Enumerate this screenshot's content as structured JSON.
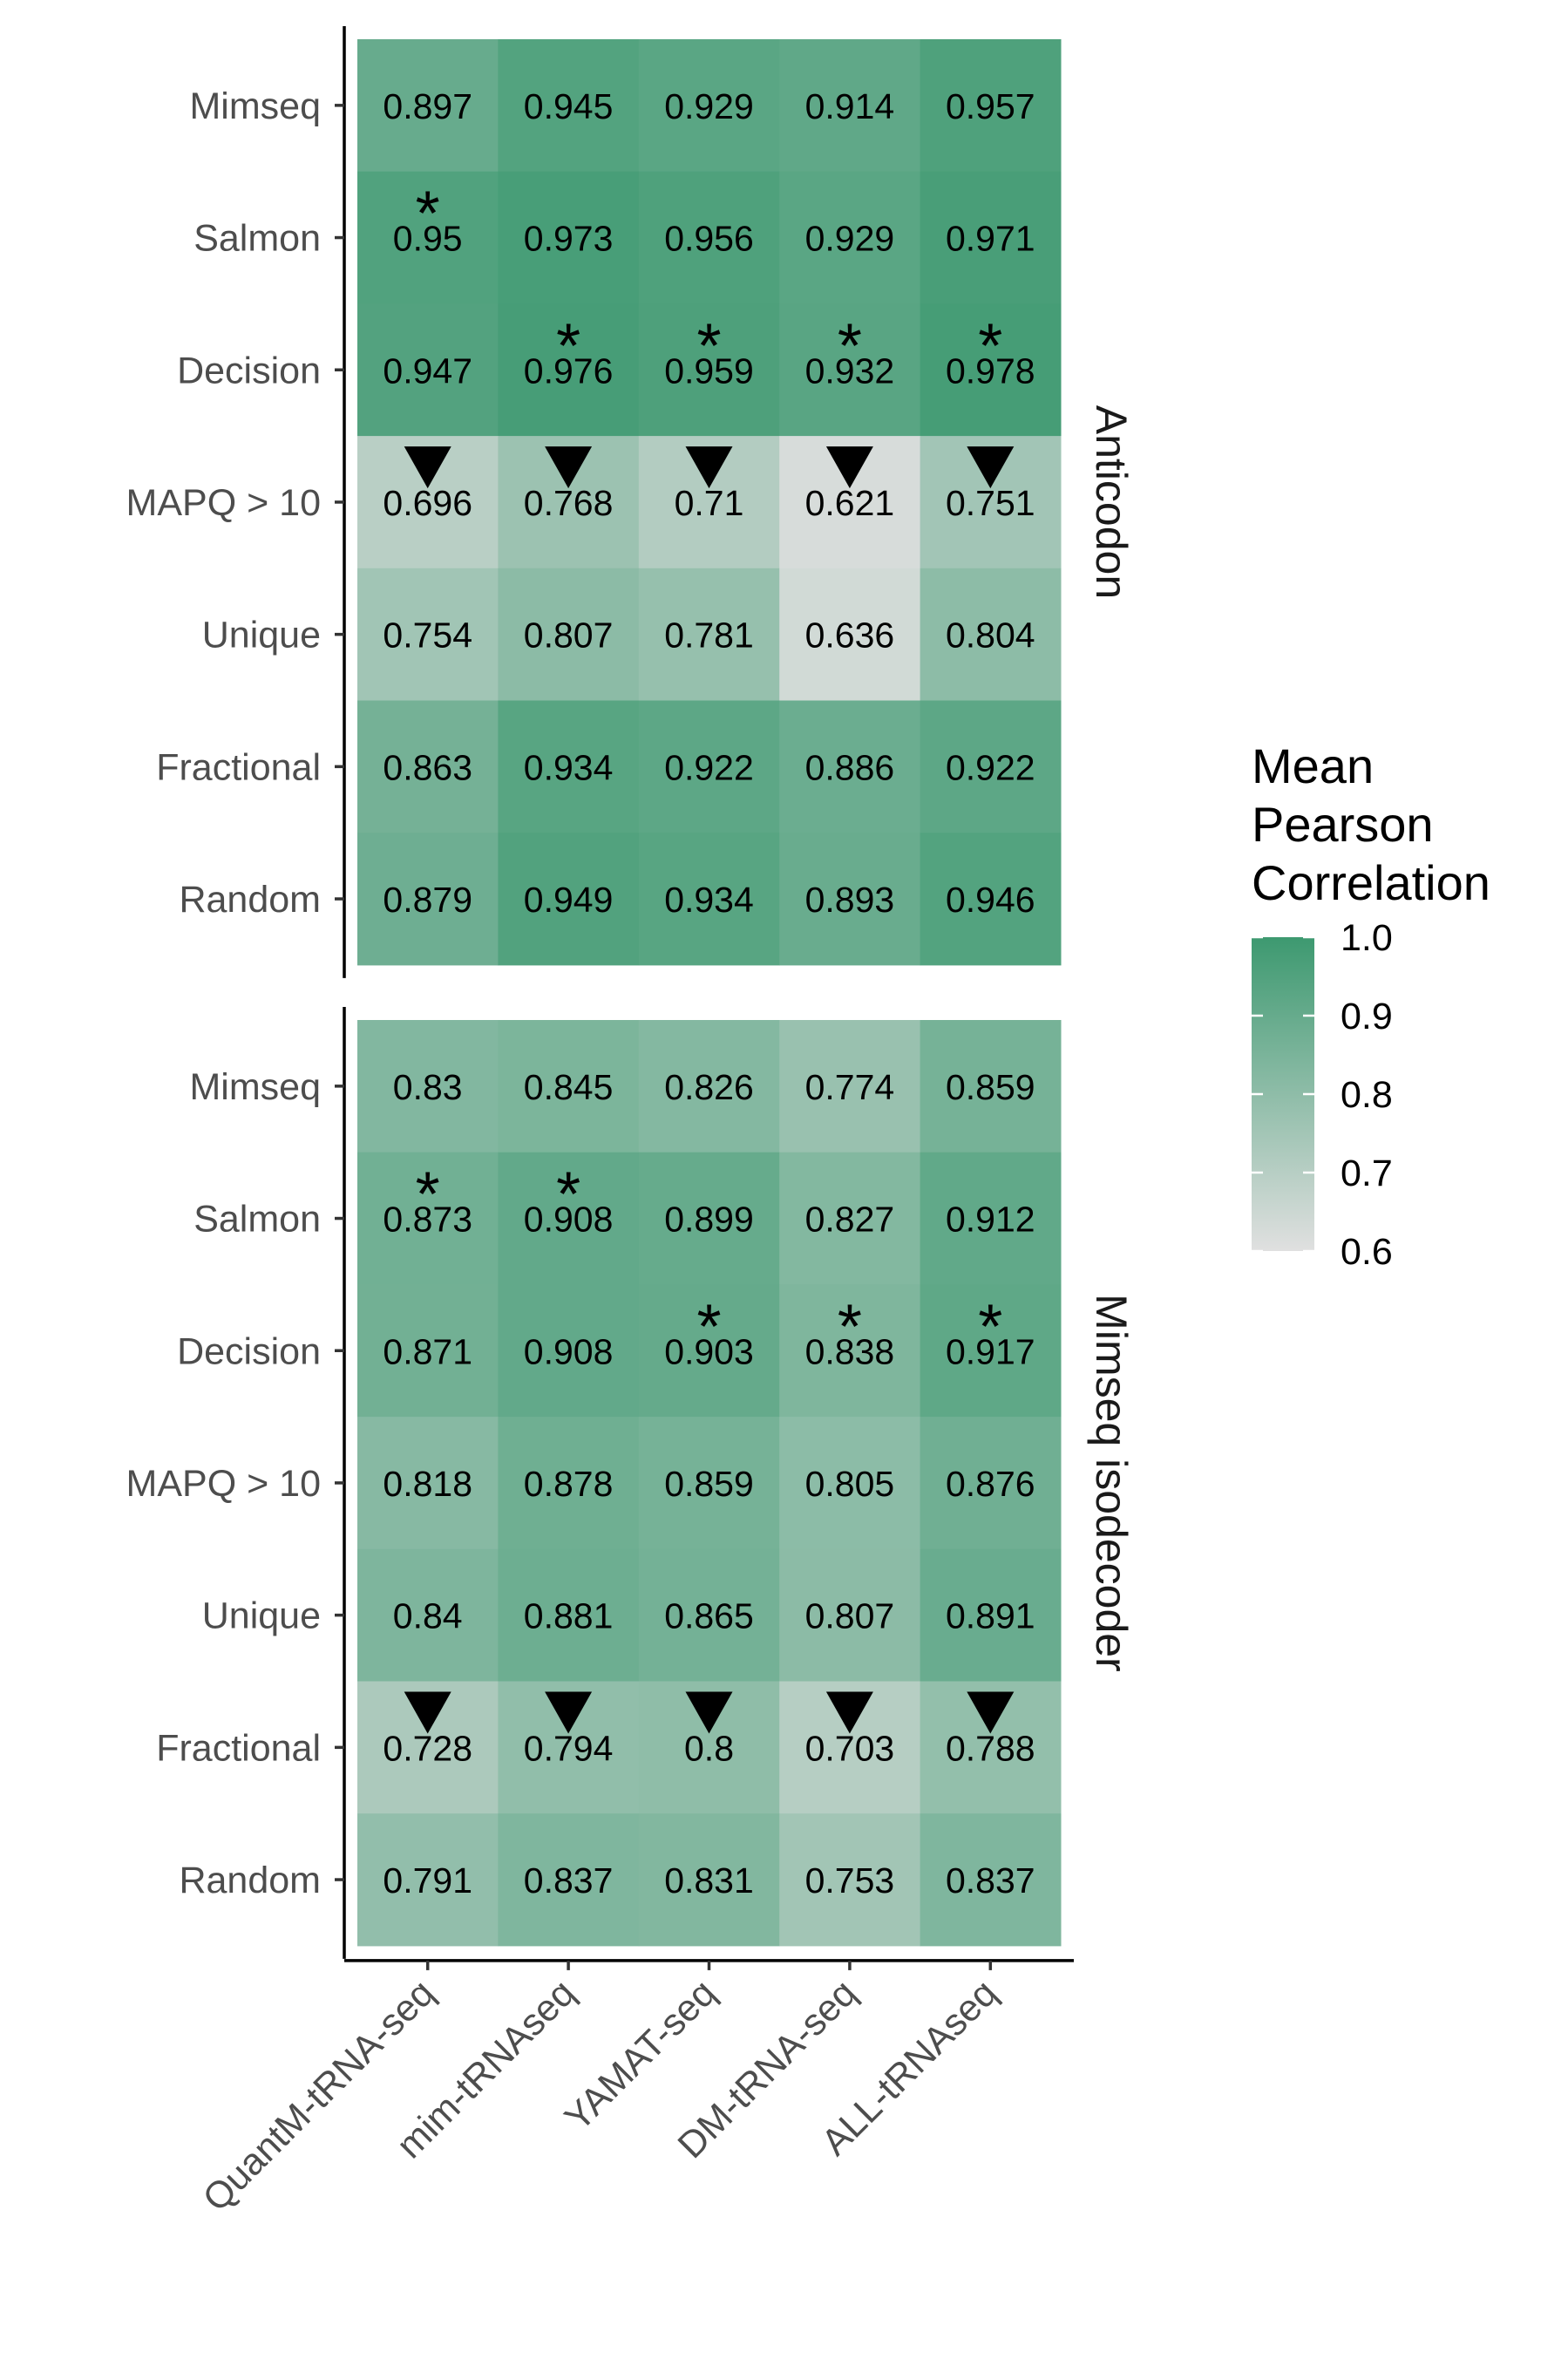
{
  "chart_data": {
    "type": "heatmap",
    "x_categories": [
      "QuantM-tRNA-seq",
      "mim-tRNAseq",
      "YAMAT-seq",
      "DM-tRNA-seq",
      "ALL-tRNAseq"
    ],
    "y_categories": [
      "Mimseq",
      "Salmon",
      "Decision",
      "MAPQ > 10",
      "Unique",
      "Fractional",
      "Random"
    ],
    "facets": [
      {
        "name": "Anticodon",
        "values": [
          [
            "0.897",
            "0.945",
            "0.929",
            "0.914",
            "0.957"
          ],
          [
            "0.95",
            "0.973",
            "0.956",
            "0.929",
            "0.971"
          ],
          [
            "0.947",
            "0.976",
            "0.959",
            "0.932",
            "0.978"
          ],
          [
            "0.696",
            "0.768",
            "0.71",
            "0.621",
            "0.751"
          ],
          [
            "0.754",
            "0.807",
            "0.781",
            "0.636",
            "0.804"
          ],
          [
            "0.863",
            "0.934",
            "0.922",
            "0.886",
            "0.922"
          ],
          [
            "0.879",
            "0.949",
            "0.934",
            "0.893",
            "0.946"
          ]
        ],
        "markers": [
          [
            "",
            "",
            "",
            "",
            ""
          ],
          [
            "*",
            "",
            "",
            "",
            ""
          ],
          [
            "",
            "*",
            "*",
            "*",
            "*"
          ],
          [
            "▼",
            "▼",
            "▼",
            "▼",
            "▼"
          ],
          [
            "",
            "",
            "",
            "",
            ""
          ],
          [
            "",
            "",
            "",
            "",
            ""
          ],
          [
            "",
            "",
            "",
            "",
            ""
          ]
        ]
      },
      {
        "name": "Mimseq isodecoder",
        "values": [
          [
            "0.83",
            "0.845",
            "0.826",
            "0.774",
            "0.859"
          ],
          [
            "0.873",
            "0.908",
            "0.899",
            "0.827",
            "0.912"
          ],
          [
            "0.871",
            "0.908",
            "0.903",
            "0.838",
            "0.917"
          ],
          [
            "0.818",
            "0.878",
            "0.859",
            "0.805",
            "0.876"
          ],
          [
            "0.84",
            "0.881",
            "0.865",
            "0.807",
            "0.891"
          ],
          [
            "0.728",
            "0.794",
            "0.8",
            "0.703",
            "0.788"
          ],
          [
            "0.791",
            "0.837",
            "0.831",
            "0.753",
            "0.837"
          ]
        ],
        "markers": [
          [
            "",
            "",
            "",
            "",
            ""
          ],
          [
            "*",
            "*",
            "",
            "",
            ""
          ],
          [
            "",
            "",
            "*",
            "*",
            "*"
          ],
          [
            "",
            "",
            "",
            "",
            ""
          ],
          [
            "",
            "",
            "",
            "",
            ""
          ],
          [
            "▼",
            "▼",
            "▼",
            "▼",
            "▼"
          ],
          [
            "",
            "",
            "",
            "",
            ""
          ]
        ]
      }
    ],
    "legend": {
      "title_lines": [
        "Mean",
        "Pearson",
        "Correlation"
      ],
      "ticks": [
        "1.0",
        "0.9",
        "0.8",
        "0.7",
        "0.6"
      ],
      "range": [
        0.6,
        1.0
      ],
      "color_low": "#e0e0e0",
      "color_high": "#3d9970"
    }
  }
}
